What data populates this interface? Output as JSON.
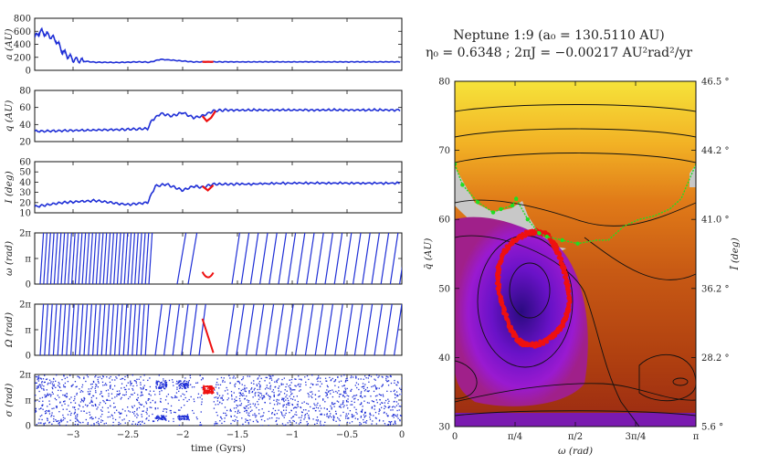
{
  "chart_data": [
    {
      "type": "line",
      "panel": "left-1",
      "ylabel": "a (AU)",
      "xlim": [
        -3.35,
        0
      ],
      "ylim": [
        0,
        800
      ],
      "yticks": [
        0,
        200,
        400,
        600,
        800
      ],
      "ytick_labels": [
        "0",
        "200",
        "400",
        "600",
        "800"
      ],
      "series": [
        {
          "name": "blue",
          "color": "#1f2fd6",
          "x": [
            -3.35,
            -3.3,
            -3.25,
            -3.2,
            -3.15,
            -3.1,
            -3.05,
            -3.0,
            -2.9,
            -2.8,
            -2.6,
            -2.4,
            -2.3,
            -2.2,
            -1.9,
            -1.8,
            -1.6,
            -1.2,
            -0.8,
            -0.4,
            0
          ],
          "y": [
            500,
            600,
            560,
            520,
            450,
            300,
            230,
            170,
            140,
            125,
            120,
            130,
            125,
            170,
            130,
            130,
            130,
            130,
            130,
            130,
            130
          ]
        },
        {
          "name": "red",
          "color": "#ee1111",
          "x": [
            -1.82,
            -1.72
          ],
          "y": [
            130,
            130
          ]
        }
      ]
    },
    {
      "type": "line",
      "panel": "left-2",
      "ylabel": "q (AU)",
      "xlim": [
        -3.35,
        0
      ],
      "ylim": [
        20,
        80
      ],
      "yticks": [
        20,
        40,
        60,
        80
      ],
      "ytick_labels": [
        "20",
        "40",
        "60",
        "80"
      ],
      "series": [
        {
          "name": "blue",
          "color": "#1f2fd6",
          "x": [
            -3.35,
            -3.0,
            -2.6,
            -2.32,
            -2.28,
            -2.2,
            -2.1,
            -2.0,
            -1.9,
            -1.82,
            -1.72,
            -1.6,
            -1.2,
            -0.8,
            -0.4,
            0
          ],
          "y": [
            32,
            33,
            34,
            35,
            45,
            53,
            50,
            54,
            48,
            50,
            56,
            57,
            57,
            57,
            57,
            57
          ]
        },
        {
          "name": "red",
          "color": "#ee1111",
          "x": [
            -1.82,
            -1.78,
            -1.74,
            -1.7
          ],
          "y": [
            50,
            44,
            48,
            56
          ]
        }
      ]
    },
    {
      "type": "line",
      "panel": "left-3",
      "ylabel": "I (deg)",
      "xlim": [
        -3.35,
        0
      ],
      "ylim": [
        10,
        60
      ],
      "yticks": [
        10,
        20,
        30,
        40,
        50,
        60
      ],
      "ytick_labels": [
        "10",
        "20",
        "30",
        "40",
        "50",
        "60"
      ],
      "series": [
        {
          "name": "blue",
          "color": "#1f2fd6",
          "x": [
            -3.35,
            -3.1,
            -2.8,
            -2.5,
            -2.32,
            -2.25,
            -2.15,
            -2.0,
            -1.9,
            -1.82,
            -1.72,
            -1.5,
            -1.0,
            -0.5,
            0
          ],
          "y": [
            16,
            20,
            22,
            18,
            20,
            36,
            38,
            32,
            36,
            35,
            38,
            38,
            39,
            39,
            39
          ]
        },
        {
          "name": "red",
          "color": "#ee1111",
          "x": [
            -1.82,
            -1.77,
            -1.72
          ],
          "y": [
            36,
            32,
            37
          ]
        }
      ]
    },
    {
      "type": "line",
      "panel": "left-4",
      "ylabel": "ω (rad)",
      "xlim": [
        -3.35,
        0
      ],
      "ylim": [
        0,
        6.2832
      ],
      "ytick_labels": [
        "0",
        "π",
        "2π"
      ],
      "description_series": "circulating omega, dense stripes before -2.3 Gyr"
    },
    {
      "type": "line",
      "panel": "left-5",
      "ylabel": "Ω (rad)",
      "xlim": [
        -3.35,
        0
      ],
      "ylim": [
        0,
        6.2832
      ],
      "ytick_labels": [
        "0",
        "π",
        "2π"
      ]
    },
    {
      "type": "scatter",
      "panel": "left-6",
      "ylabel": "σ (rad)",
      "xlabel": "time (Gyrs)",
      "xlim": [
        -3.35,
        0
      ],
      "ylim": [
        0,
        6.2832
      ],
      "xticks": [
        -3,
        -2.5,
        -2,
        -1.5,
        -1,
        -0.5,
        0
      ],
      "xtick_labels": [
        "−3",
        "−2.5",
        "−2",
        "−1.5",
        "−1",
        "−0.5",
        "0"
      ],
      "ytick_labels": [
        "0",
        "π",
        "2π"
      ],
      "red_cluster": {
        "x": [
          -1.82,
          -1.72
        ],
        "y": [
          4.0,
          5.0
        ]
      }
    },
    {
      "type": "heatmap",
      "panel": "right",
      "title_line1": "Neptune 1:9 (a₀ = 130.5110 AU)",
      "title_line2": "η₀ = 0.6348  ;  2πJ = −0.00217 AU²rad²/yr",
      "xlabel": "ω (rad)",
      "ylabel_left": "q̄ (AU)",
      "ylabel_right": "Ī (deg)",
      "xlim": [
        0,
        3.1416
      ],
      "ylim": [
        30,
        80
      ],
      "xtick_labels": [
        "0",
        "π/4",
        "π/2",
        "3π/4",
        "π"
      ],
      "yticks": [
        30,
        40,
        50,
        60,
        70,
        80
      ],
      "ytick_labels": [
        "30",
        "40",
        "50",
        "60",
        "70",
        "80"
      ],
      "right_tick_labels": [
        "5.6 °",
        "28.2 °",
        "36.2 °",
        "41.0 °",
        "44.2 °",
        "46.5 °"
      ],
      "red_island_center": {
        "omega": 1.0,
        "q": 50
      },
      "green_boundary": {
        "omega": [
          0.0,
          0.1,
          0.3,
          0.5,
          0.6,
          0.75,
          0.8,
          0.95,
          1.1,
          1.2,
          1.4,
          1.6,
          1.85,
          2.0,
          2.2,
          2.4,
          2.6,
          2.8,
          2.95,
          3.1416
        ],
        "q": [
          68,
          65,
          62.5,
          61,
          61.5,
          62,
          63,
          60,
          58,
          57.5,
          57,
          56.5,
          57,
          57,
          59,
          60,
          60.5,
          61.5,
          63,
          68
        ]
      }
    }
  ]
}
